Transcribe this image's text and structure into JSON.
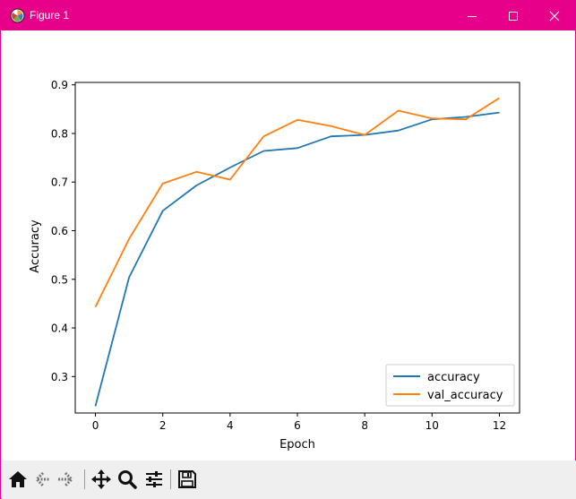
{
  "window": {
    "title": "Figure 1",
    "titlebar_color": "#e6008a",
    "icons": {
      "app": "matplotlib-figure-icon",
      "minimize": "minimize-icon",
      "maximize": "maximize-icon",
      "close": "close-icon"
    }
  },
  "toolbar": {
    "buttons": [
      "home-icon",
      "back-arrow-icon",
      "forward-arrow-icon",
      "pan-move-icon",
      "zoom-magnifier-icon",
      "configure-subplots-icon",
      "save-disk-icon"
    ]
  },
  "chart_data": {
    "type": "line",
    "title": "",
    "xlabel": "Epoch",
    "ylabel": "Accuracy",
    "x": [
      0,
      1,
      2,
      3,
      4,
      5,
      6,
      7,
      8,
      9,
      10,
      11,
      12
    ],
    "xlim": [
      -0.6,
      12.6
    ],
    "ylim": [
      0.225,
      0.905
    ],
    "xticks": [
      0,
      2,
      4,
      6,
      8,
      10,
      12
    ],
    "yticks": [
      0.3,
      0.4,
      0.5,
      0.6,
      0.7,
      0.8,
      0.9
    ],
    "xtick_labels": [
      "0",
      "2",
      "4",
      "6",
      "8",
      "10",
      "12"
    ],
    "ytick_labels": [
      "0.3",
      "0.4",
      "0.5",
      "0.6",
      "0.7",
      "0.8",
      "0.9"
    ],
    "grid": false,
    "legend_position": "lower-right",
    "series": [
      {
        "name": "accuracy",
        "color": "#1f77b4",
        "values": [
          0.239,
          0.504,
          0.641,
          0.693,
          0.73,
          0.764,
          0.77,
          0.794,
          0.797,
          0.806,
          0.829,
          0.834,
          0.843
        ]
      },
      {
        "name": "val_accuracy",
        "color": "#ff7f0e",
        "values": [
          0.443,
          0.583,
          0.697,
          0.721,
          0.705,
          0.794,
          0.828,
          0.815,
          0.797,
          0.847,
          0.831,
          0.829,
          0.873
        ]
      }
    ]
  }
}
